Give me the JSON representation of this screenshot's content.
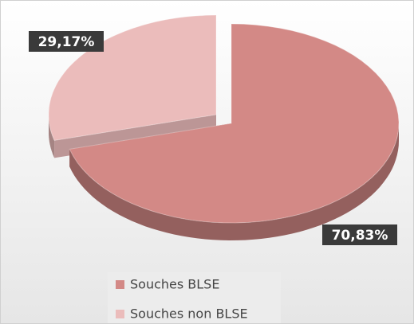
{
  "chart_data": {
    "type": "pie",
    "categories": [
      "Souches BLSE",
      "Souches non BLSE"
    ],
    "values": [
      70.83,
      29.17
    ],
    "value_labels": [
      "70,83%",
      "29,17%"
    ],
    "colors": [
      "#d38986",
      "#ebbcbb"
    ],
    "legend": "bottom"
  }
}
